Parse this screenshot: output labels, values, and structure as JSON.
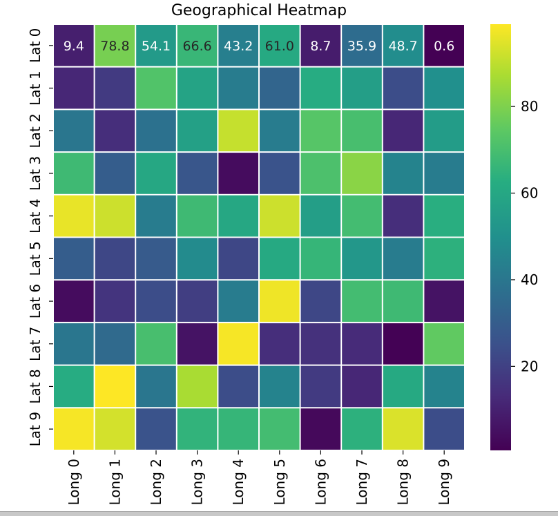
{
  "chart_data": {
    "type": "heatmap",
    "title": "Geographical Heatmap",
    "colormap": "viridis",
    "rows": [
      "Lat 0",
      "Lat 1",
      "Lat 2",
      "Lat 3",
      "Lat 4",
      "Lat 5",
      "Lat 6",
      "Lat 7",
      "Lat 8",
      "Lat 9"
    ],
    "columns": [
      "Long 0",
      "Long 1",
      "Long 2",
      "Long 3",
      "Long 4",
      "Long 5",
      "Long 6",
      "Long 7",
      "Long 8",
      "Long 9"
    ],
    "values": [
      [
        9.4,
        78.8,
        54.1,
        66.6,
        43.2,
        61.0,
        8.7,
        35.9,
        48.7,
        0.6
      ],
      [
        12.0,
        18.0,
        72.0,
        58.0,
        42.0,
        33.0,
        62.0,
        56.0,
        24.0,
        50.0
      ],
      [
        40.0,
        14.0,
        38.0,
        57.0,
        91.0,
        42.0,
        73.0,
        70.0,
        12.0,
        55.0
      ],
      [
        68.0,
        30.0,
        60.0,
        27.0,
        4.0,
        26.0,
        71.0,
        82.0,
        45.0,
        42.0
      ],
      [
        96.0,
        92.0,
        42.0,
        68.0,
        60.0,
        92.0,
        56.0,
        69.0,
        14.0,
        63.0
      ],
      [
        30.0,
        22.0,
        29.0,
        48.0,
        22.0,
        61.0,
        66.0,
        53.0,
        42.0,
        64.0
      ],
      [
        4.0,
        16.0,
        24.0,
        19.0,
        42.0,
        97.0,
        22.0,
        69.0,
        68.0,
        6.0
      ],
      [
        40.0,
        35.0,
        70.0,
        6.0,
        98.0,
        14.0,
        15.0,
        13.0,
        1.0,
        75.0
      ],
      [
        62.0,
        99.0,
        40.0,
        87.0,
        24.0,
        45.0,
        18.0,
        12.0,
        61.0,
        45.0
      ],
      [
        98.0,
        93.0,
        26.0,
        65.0,
        66.0,
        69.0,
        3.0,
        64.0,
        94.0,
        24.0
      ]
    ],
    "annotated_row": 0,
    "annotations": [
      "9.4",
      "78.8",
      "54.1",
      "66.6",
      "43.2",
      "61.0",
      "8.7",
      "35.9",
      "48.7",
      "0.6"
    ],
    "colorbar": {
      "vmin": 0.6,
      "vmax": 99.0,
      "ticks": [
        20,
        40,
        60,
        80
      ],
      "tick_labels": [
        "20",
        "40",
        "60",
        "80"
      ]
    }
  }
}
